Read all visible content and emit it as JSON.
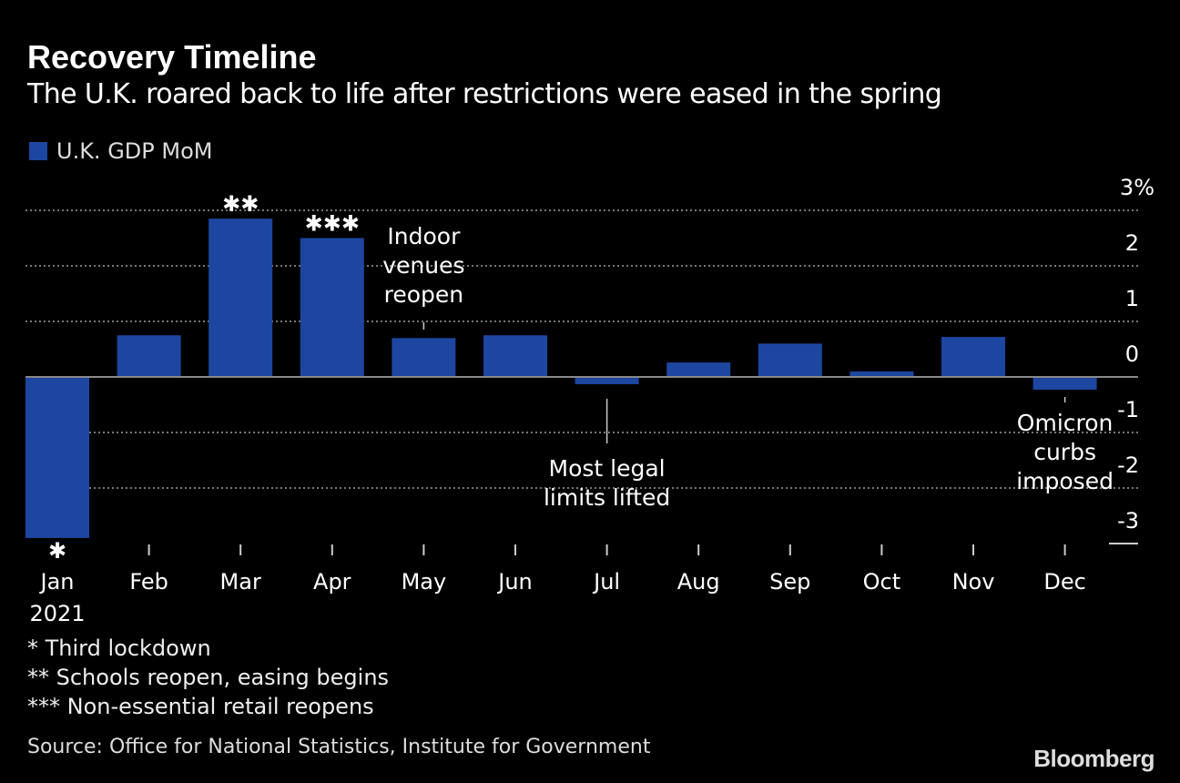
{
  "chart_data": {
    "type": "bar",
    "title": "Recovery Timeline",
    "subtitle": "The U.K. roared back to life after restrictions were eased in the spring",
    "categories": [
      "Jan",
      "Feb",
      "Mar",
      "Apr",
      "May",
      "Jun",
      "Jul",
      "Aug",
      "Sep",
      "Oct",
      "Nov",
      "Dec"
    ],
    "year_label": "2021",
    "series": [
      {
        "name": "U.K. GDP MoM",
        "color": "#1c46a0",
        "values": [
          -2.9,
          0.75,
          2.85,
          2.5,
          0.7,
          0.75,
          -0.13,
          0.26,
          0.6,
          0.1,
          0.72,
          -0.23
        ]
      }
    ],
    "ylim": [
      -3,
      3
    ],
    "yticks": [
      {
        "v": 3,
        "label": "3%"
      },
      {
        "v": 2,
        "label": "2"
      },
      {
        "v": 1,
        "label": "1"
      },
      {
        "v": 0,
        "label": "0"
      },
      {
        "v": -1,
        "label": "-1"
      },
      {
        "v": -2,
        "label": "-2"
      },
      {
        "v": -3,
        "label": "-3"
      }
    ],
    "grid": true,
    "legend_position": "top-left",
    "bar_markers": [
      {
        "index": 0,
        "text": "*"
      },
      {
        "index": 2,
        "text": "**"
      },
      {
        "index": 3,
        "text": "***"
      }
    ],
    "annotations": [
      {
        "index": 4,
        "lines": [
          "Indoor",
          "venues",
          "reopen"
        ],
        "position": "above"
      },
      {
        "index": 6,
        "lines": [
          "Most legal",
          "limits lifted"
        ],
        "position": "below"
      },
      {
        "index": 11,
        "lines": [
          "Omicron",
          "curbs",
          "imposed"
        ],
        "position": "below"
      }
    ],
    "footnotes": [
      "* Third lockdown",
      "** Schools reopen, easing begins",
      "*** Non-essential retail reopens"
    ],
    "source": "Source: Office for National Statistics, Institute for Government"
  },
  "brand": "Bloomberg"
}
